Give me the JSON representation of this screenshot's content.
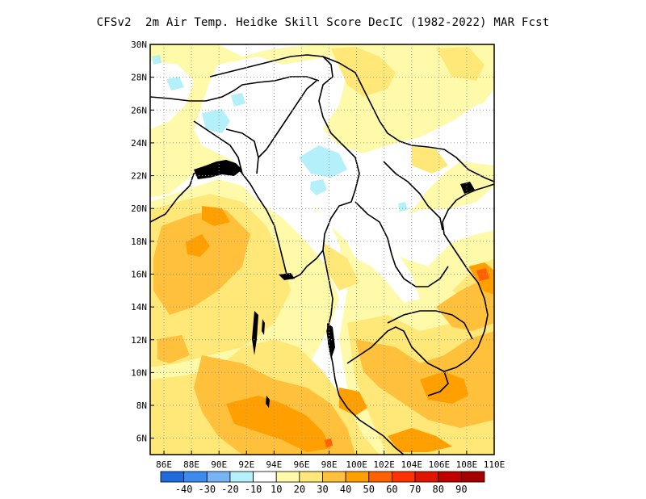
{
  "title": "CFSv2  2m Air Temp. Heidke Skill Score DecIC (1982-2022) MAR Fcst",
  "map": {
    "lon_range": [
      85,
      110
    ],
    "lat_range": [
      5,
      30
    ],
    "lon_ticks": [
      "86E",
      "88E",
      "90E",
      "92E",
      "94E",
      "96E",
      "98E",
      "100E",
      "102E",
      "104E",
      "106E",
      "108E",
      "110E"
    ],
    "lat_ticks": [
      "6N",
      "8N",
      "10N",
      "12N",
      "14N",
      "16N",
      "18N",
      "20N",
      "22N",
      "24N",
      "26N",
      "28N",
      "30N"
    ],
    "grid": "dotted"
  },
  "colorbar": {
    "colors": [
      "#1e6cdc",
      "#3c8cf0",
      "#78b4f5",
      "#b4f0fa",
      "#ffffff",
      "#fffaaa",
      "#ffe878",
      "#ffc03c",
      "#ffa000",
      "#ff6000",
      "#ff3200",
      "#e11400",
      "#c00000",
      "#a50000"
    ],
    "labels": [
      "-40",
      "-30",
      "-20",
      "-10",
      "10",
      "20",
      "30",
      "40",
      "50",
      "60",
      "70",
      "80",
      "90"
    ]
  },
  "palette": {
    "light_blue": "#b4f0fa",
    "light_yellow": "#fffaaa",
    "yellow": "#ffe878",
    "light_orange": "#ffc03c",
    "orange": "#ffa000",
    "dark_orange": "#ff6000",
    "coast": "#000000"
  }
}
